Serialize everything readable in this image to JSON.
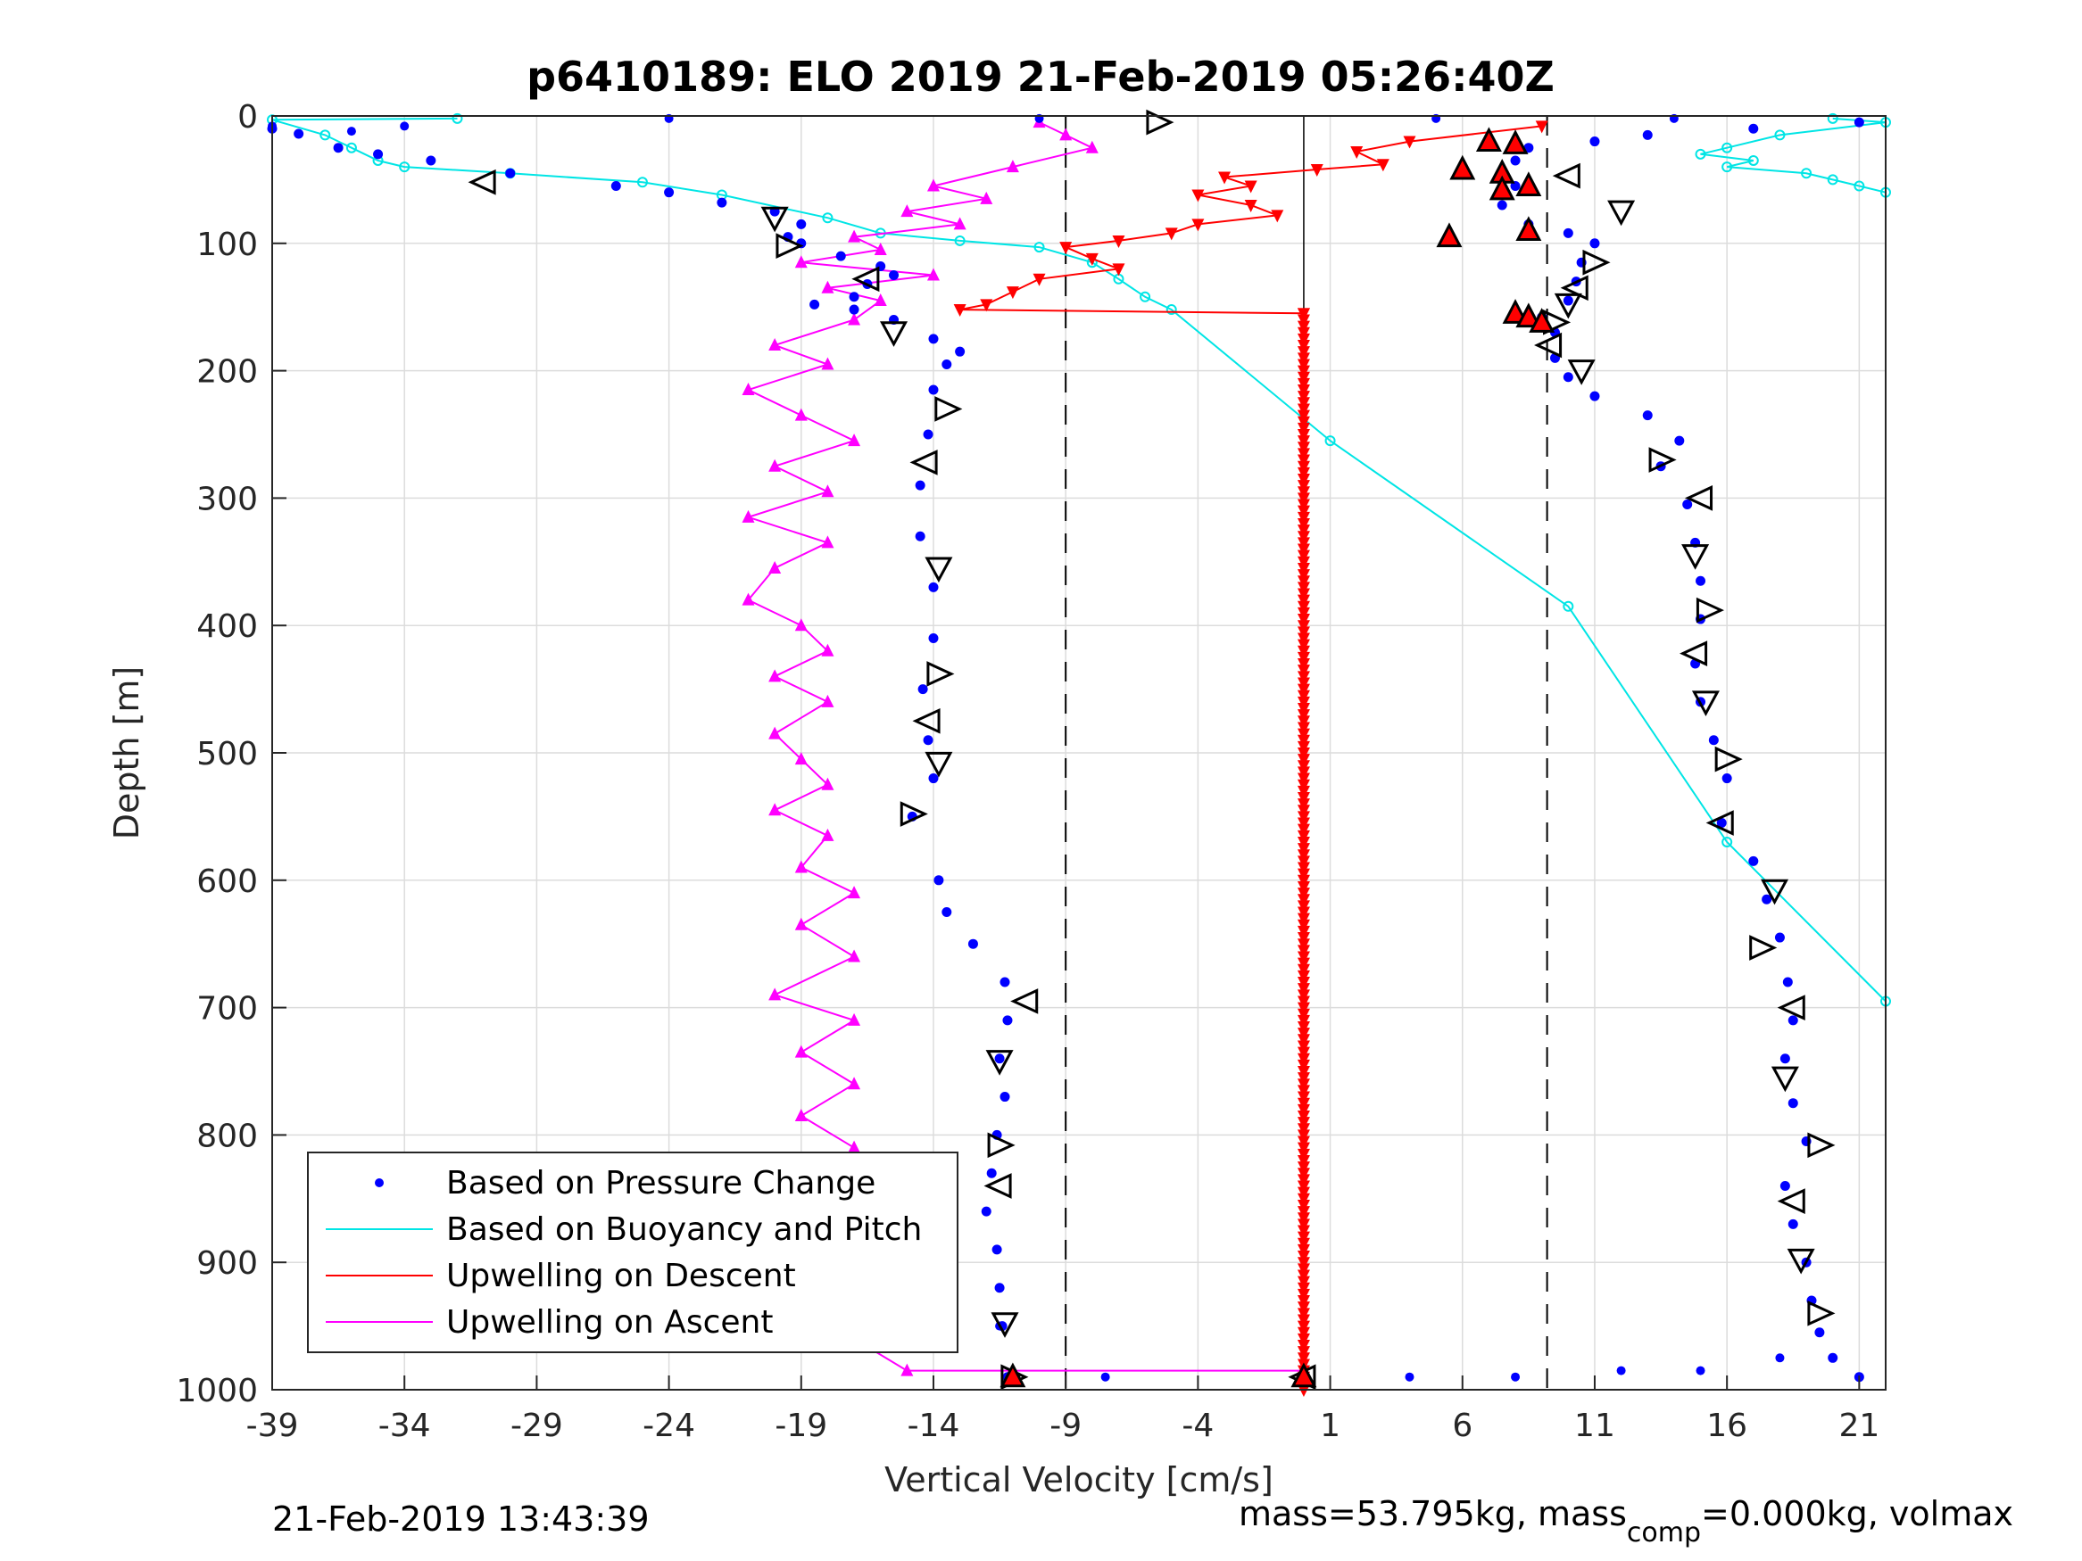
{
  "chart_data": {
    "type": "scatter",
    "title": "p6410189: ELO 2019 21-Feb-2019 05:26:40Z",
    "xlabel": "Vertical Velocity [cm/s]",
    "ylabel": "Depth [m]",
    "xlim": [
      -39,
      22
    ],
    "ylim": [
      0,
      1000
    ],
    "y_reversed": true,
    "xticks": [
      -39,
      -34,
      -29,
      -24,
      -19,
      -14,
      -9,
      -4,
      1,
      6,
      11,
      16,
      21
    ],
    "yticks": [
      0,
      100,
      200,
      300,
      400,
      500,
      600,
      700,
      800,
      900,
      1000
    ],
    "grid": true,
    "legend_position": "bottom-left",
    "threshold_lines": [
      -9,
      9.2
    ],
    "zero_line": 0,
    "colors": {
      "pressure": "#0000ff",
      "buoyancy": "#00e5e5",
      "descent": "#ff0000",
      "ascent": "#ff00ff"
    },
    "series": [
      {
        "name": "Based on Pressure Change",
        "marker": "dot",
        "descent_points": [
          [
            -39,
            10
          ],
          [
            -38,
            14
          ],
          [
            -36.5,
            25
          ],
          [
            -35,
            30
          ],
          [
            -33,
            35
          ],
          [
            -30,
            45
          ],
          [
            -26,
            55
          ],
          [
            -24,
            60
          ],
          [
            -22,
            68
          ],
          [
            -20,
            75
          ],
          [
            -19,
            85
          ],
          [
            -19.5,
            95
          ],
          [
            -19,
            100
          ],
          [
            -17.5,
            110
          ],
          [
            -16,
            118
          ],
          [
            -15.5,
            125
          ],
          [
            -16.5,
            132
          ],
          [
            -17,
            142
          ],
          [
            -18.5,
            148
          ],
          [
            -17,
            152
          ],
          [
            -15.5,
            160
          ],
          [
            -14,
            175
          ],
          [
            -13,
            185
          ],
          [
            -13.5,
            195
          ],
          [
            -14,
            215
          ],
          [
            -14.2,
            250
          ],
          [
            -14.5,
            290
          ],
          [
            -14.5,
            330
          ],
          [
            -14,
            370
          ],
          [
            -14,
            410
          ],
          [
            -14.4,
            450
          ],
          [
            -14.2,
            490
          ],
          [
            -14,
            520
          ],
          [
            -14.8,
            550
          ],
          [
            -13.8,
            600
          ],
          [
            -13.5,
            625
          ],
          [
            -12.5,
            650
          ],
          [
            -11.3,
            680
          ],
          [
            -11.2,
            710
          ],
          [
            -11.5,
            740
          ],
          [
            -11.3,
            770
          ],
          [
            -11.6,
            800
          ],
          [
            -11.8,
            830
          ],
          [
            -12,
            860
          ],
          [
            -11.6,
            890
          ],
          [
            -11.5,
            920
          ],
          [
            -11.4,
            950
          ],
          [
            -11.2,
            990
          ]
        ],
        "ascent_points": [
          [
            21,
            5
          ],
          [
            17,
            10
          ],
          [
            13,
            15
          ],
          [
            11,
            20
          ],
          [
            8.5,
            25
          ],
          [
            8,
            35
          ],
          [
            7.5,
            45
          ],
          [
            8,
            55
          ],
          [
            7.5,
            70
          ],
          [
            8.5,
            85
          ],
          [
            10,
            92
          ],
          [
            11,
            100
          ],
          [
            10.5,
            115
          ],
          [
            10.3,
            130
          ],
          [
            10,
            145
          ],
          [
            9,
            158
          ],
          [
            9.5,
            170
          ],
          [
            9.5,
            190
          ],
          [
            10,
            205
          ],
          [
            11,
            220
          ],
          [
            13,
            235
          ],
          [
            14.2,
            255
          ],
          [
            13.5,
            275
          ],
          [
            14.5,
            305
          ],
          [
            14.8,
            335
          ],
          [
            15,
            365
          ],
          [
            15,
            395
          ],
          [
            14.8,
            430
          ],
          [
            15,
            460
          ],
          [
            15.5,
            490
          ],
          [
            16,
            520
          ],
          [
            15.8,
            555
          ],
          [
            17,
            585
          ],
          [
            17.5,
            615
          ],
          [
            18,
            645
          ],
          [
            18.3,
            680
          ],
          [
            18.5,
            710
          ],
          [
            18.2,
            740
          ],
          [
            18.5,
            775
          ],
          [
            19,
            805
          ],
          [
            18.2,
            840
          ],
          [
            18.5,
            870
          ],
          [
            19,
            900
          ],
          [
            19.2,
            930
          ],
          [
            19.5,
            955
          ],
          [
            20,
            975
          ],
          [
            21,
            990
          ]
        ],
        "stray_points": [
          [
            -24,
            2
          ],
          [
            -10,
            2
          ],
          [
            5,
            2
          ],
          [
            14,
            2
          ],
          [
            -39,
            8
          ],
          [
            -36,
            12
          ],
          [
            -34,
            8
          ],
          [
            -11.5,
            950
          ],
          [
            -7.5,
            990
          ],
          [
            4,
            990
          ],
          [
            8,
            990
          ],
          [
            12,
            985
          ],
          [
            15,
            985
          ],
          [
            18,
            975
          ]
        ]
      },
      {
        "name": "Based on Buoyancy and Pitch",
        "marker": "circle-line",
        "descent_points": [
          [
            -32,
            2
          ],
          [
            -39,
            3
          ],
          [
            -37,
            15
          ],
          [
            -36,
            25
          ],
          [
            -35,
            35
          ],
          [
            -34,
            40
          ],
          [
            -30,
            45
          ],
          [
            -25,
            52
          ],
          [
            -22,
            62
          ],
          [
            -18,
            80
          ],
          [
            -16,
            92
          ],
          [
            -13,
            98
          ],
          [
            -10,
            103
          ],
          [
            -8,
            115
          ],
          [
            -7,
            128
          ],
          [
            -6,
            142
          ],
          [
            -5,
            152
          ],
          [
            1,
            255
          ],
          [
            10,
            385
          ],
          [
            16,
            570
          ],
          [
            22,
            695
          ]
        ],
        "ascent_points": [
          [
            20,
            2
          ],
          [
            22,
            5
          ],
          [
            18,
            15
          ],
          [
            16,
            25
          ],
          [
            15,
            30
          ],
          [
            17,
            35
          ],
          [
            16,
            40
          ],
          [
            19,
            45
          ],
          [
            20,
            50
          ],
          [
            21,
            55
          ],
          [
            22,
            60
          ]
        ]
      },
      {
        "name": "Upwelling on Descent",
        "marker": "triangle-down",
        "points": [
          [
            9,
            8
          ],
          [
            4,
            20
          ],
          [
            2,
            28
          ],
          [
            3,
            38
          ],
          [
            0.5,
            42
          ],
          [
            -3,
            48
          ],
          [
            -2,
            55
          ],
          [
            -4,
            62
          ],
          [
            -2,
            70
          ],
          [
            -1,
            78
          ],
          [
            -4,
            85
          ],
          [
            -5,
            92
          ],
          [
            -7,
            98
          ],
          [
            -9,
            103
          ],
          [
            -8,
            112
          ],
          [
            -7,
            120
          ],
          [
            -10,
            128
          ],
          [
            -11,
            138
          ],
          [
            -12,
            148
          ],
          [
            -13,
            152
          ],
          [
            0,
            155
          ],
          [
            0,
            1000
          ]
        ]
      },
      {
        "name": "Upwelling on Ascent",
        "marker": "triangle-up",
        "points": [
          [
            -10,
            5
          ],
          [
            -9,
            15
          ],
          [
            -8,
            25
          ],
          [
            -11,
            40
          ],
          [
            -14,
            55
          ],
          [
            -12,
            65
          ],
          [
            -15,
            75
          ],
          [
            -13,
            85
          ],
          [
            -17,
            95
          ],
          [
            -16,
            105
          ],
          [
            -19,
            115
          ],
          [
            -14,
            125
          ],
          [
            -18,
            135
          ],
          [
            -16,
            145
          ],
          [
            -17,
            160
          ],
          [
            -20,
            180
          ],
          [
            -18,
            195
          ],
          [
            -21,
            215
          ],
          [
            -19,
            235
          ],
          [
            -17,
            255
          ],
          [
            -20,
            275
          ],
          [
            -18,
            295
          ],
          [
            -21,
            315
          ],
          [
            -18,
            335
          ],
          [
            -20,
            355
          ],
          [
            -21,
            380
          ],
          [
            -19,
            400
          ],
          [
            -18,
            420
          ],
          [
            -20,
            440
          ],
          [
            -18,
            460
          ],
          [
            -20,
            485
          ],
          [
            -19,
            505
          ],
          [
            -18,
            525
          ],
          [
            -20,
            545
          ],
          [
            -18,
            565
          ],
          [
            -19,
            590
          ],
          [
            -17,
            610
          ],
          [
            -19,
            635
          ],
          [
            -17,
            660
          ],
          [
            -20,
            690
          ],
          [
            -17,
            710
          ],
          [
            -19,
            735
          ],
          [
            -17,
            760
          ],
          [
            -19,
            785
          ],
          [
            -17,
            810
          ],
          [
            -16,
            840
          ],
          [
            -18,
            870
          ],
          [
            -16,
            900
          ],
          [
            -15,
            930
          ],
          [
            -17,
            960
          ],
          [
            -15,
            985
          ],
          [
            0,
            985
          ]
        ]
      }
    ],
    "pitch_markers": [
      [
        -5.5,
        5
      ],
      [
        -31,
        52
      ],
      [
        -20,
        80
      ],
      [
        -19.5,
        102
      ],
      [
        -16.5,
        128
      ],
      [
        -15.5,
        170
      ],
      [
        -13.5,
        230
      ],
      [
        -14.3,
        272
      ],
      [
        -13.8,
        355
      ],
      [
        -13.8,
        438
      ],
      [
        -14.2,
        475
      ],
      [
        -13.8,
        508
      ],
      [
        -14.8,
        548
      ],
      [
        -10.5,
        695
      ],
      [
        -11.5,
        742
      ],
      [
        -11.5,
        808
      ],
      [
        -11.5,
        840
      ],
      [
        -11.3,
        948
      ],
      [
        -11,
        990
      ],
      [
        10,
        47
      ],
      [
        12,
        75
      ],
      [
        11,
        115
      ],
      [
        10.3,
        135
      ],
      [
        10,
        148
      ],
      [
        9.5,
        162
      ],
      [
        9.3,
        180
      ],
      [
        10.5,
        200
      ],
      [
        13.5,
        270
      ],
      [
        15,
        300
      ],
      [
        14.8,
        345
      ],
      [
        15.3,
        388
      ],
      [
        14.8,
        422
      ],
      [
        15.2,
        460
      ],
      [
        16,
        505
      ],
      [
        15.8,
        555
      ],
      [
        17.8,
        608
      ],
      [
        17.3,
        653
      ],
      [
        18.5,
        700
      ],
      [
        18.2,
        755
      ],
      [
        19.5,
        808
      ],
      [
        18.5,
        852
      ],
      [
        18.8,
        898
      ],
      [
        19.5,
        940
      ],
      [
        0,
        990
      ]
    ],
    "upwelling_descent_markers": [
      [
        7,
        20
      ],
      [
        8,
        22
      ],
      [
        6,
        42
      ],
      [
        7.5,
        45
      ],
      [
        8.5,
        55
      ],
      [
        7.5,
        58
      ],
      [
        8.5,
        90
      ],
      [
        5.5,
        95
      ],
      [
        8,
        155
      ],
      [
        8.5,
        158
      ],
      [
        9,
        162
      ],
      [
        -11,
        990
      ],
      [
        0,
        990
      ]
    ],
    "footer": {
      "timestamp": "21-Feb-2019 13:43:39",
      "mass_text": "mass=53.795kg, mass",
      "mass_sub": "comp",
      "mass_rest": "=0.000kg, volmax"
    }
  }
}
